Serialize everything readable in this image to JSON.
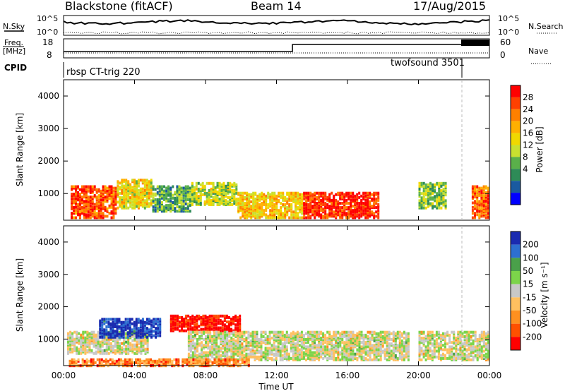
{
  "header": {
    "station": "Blackstone (fitACF)",
    "beam": "Beam 14",
    "date": "17/Aug/2015"
  },
  "top_panels": {
    "nsky_label": "N.Sky",
    "nsearch_label": "N.Search",
    "freq_label_1": "Freq.",
    "freq_label_2": "[MHz]",
    "nave_label": "Nave",
    "cpid_label": "CPID",
    "nsky_ticks": [
      "10^5",
      "10^0"
    ],
    "nsearch_ticks": [
      "10^5",
      "10^0"
    ],
    "freq_ticks": [
      "18",
      "8"
    ],
    "nave_ticks": [
      "60",
      "0"
    ],
    "cpid_modes": [
      {
        "label": "rbsp CT-trig 220",
        "start_hour": 0,
        "end_hour": 22.8
      },
      {
        "label": "twofsound 3501",
        "start_hour": 22.8,
        "end_hour": 24
      }
    ]
  },
  "chart_data": [
    {
      "type": "heatmap",
      "name": "power",
      "xlabel": "Time UT",
      "ylabel": "Slant Range [km]",
      "x_ticks": [
        "00:00",
        "04:00",
        "08:00",
        "12:00",
        "16:00",
        "20:00",
        "00:00"
      ],
      "y_ticks": [
        "1000",
        "2000",
        "3000",
        "4000"
      ],
      "xlim": [
        0,
        24
      ],
      "ylim": [
        180,
        4500
      ],
      "colorbar_label": "Power [dB]",
      "colorbar_ticks": [
        "28",
        "24",
        "20",
        "16",
        "12",
        "8",
        "4"
      ],
      "colorbar_colors": [
        "#ff0000",
        "#ff4000",
        "#ff8000",
        "#ffb000",
        "#f0d800",
        "#c8e030",
        "#5ab04a",
        "#2e8b57",
        "#1a5aa0",
        "#0000ff"
      ],
      "scatter_bands": [
        {
          "x0": 0.4,
          "x1": 3.0,
          "y0": 300,
          "y1": 1300,
          "level": 0.85
        },
        {
          "x0": 3.0,
          "x1": 5.0,
          "y0": 600,
          "y1": 1500,
          "level": 0.55
        },
        {
          "x0": 5.0,
          "x1": 7.2,
          "y0": 500,
          "y1": 1300,
          "level": 0.3
        },
        {
          "x0": 7.2,
          "x1": 9.8,
          "y0": 700,
          "y1": 1400,
          "level": 0.45
        },
        {
          "x0": 9.8,
          "x1": 13.5,
          "y0": 300,
          "y1": 1100,
          "level": 0.6
        },
        {
          "x0": 13.5,
          "x1": 17.8,
          "y0": 300,
          "y1": 1100,
          "level": 0.9
        },
        {
          "x0": 20.0,
          "x1": 21.6,
          "y0": 600,
          "y1": 1400,
          "level": 0.4
        },
        {
          "x0": 23.0,
          "x1": 24.0,
          "y0": 300,
          "y1": 1300,
          "level": 0.8
        }
      ]
    },
    {
      "type": "heatmap",
      "name": "velocity",
      "xlabel": "Time UT",
      "ylabel": "Slant Range [km]",
      "x_ticks": [
        "00:00",
        "04:00",
        "08:00",
        "12:00",
        "16:00",
        "20:00",
        "00:00"
      ],
      "y_ticks": [
        "1000",
        "2000",
        "3000",
        "4000"
      ],
      "xlim": [
        0,
        24
      ],
      "ylim": [
        180,
        4500
      ],
      "colorbar_label": "Velocity [m s⁻¹]",
      "colorbar_ticks": [
        "200",
        "100",
        "50",
        "15",
        "-15",
        "-50",
        "-100",
        "-200"
      ],
      "colorbar_colors": [
        "#1a2bb0",
        "#2d6fd0",
        "#4aa04a",
        "#7cd44a",
        "#c8c8c8",
        "#ffc060",
        "#ff9020",
        "#ff5000",
        "#ff0000"
      ],
      "scatter_bands": [
        {
          "x0": 0.2,
          "x1": 4.8,
          "y0": 600,
          "y1": 1300,
          "level": 0.5
        },
        {
          "x0": 2.0,
          "x1": 5.5,
          "y0": 1100,
          "y1": 1700,
          "level": 0.95
        },
        {
          "x0": 6.0,
          "x1": 10.0,
          "y0": 1300,
          "y1": 1800,
          "level": 0.02
        },
        {
          "x0": 7.0,
          "x1": 19.5,
          "y0": 400,
          "y1": 1300,
          "level": 0.5
        },
        {
          "x0": 0.3,
          "x1": 10.5,
          "y0": 220,
          "y1": 450,
          "level": 0.25
        },
        {
          "x0": 20.0,
          "x1": 24.0,
          "y0": 400,
          "y1": 1300,
          "level": 0.5
        }
      ]
    }
  ]
}
